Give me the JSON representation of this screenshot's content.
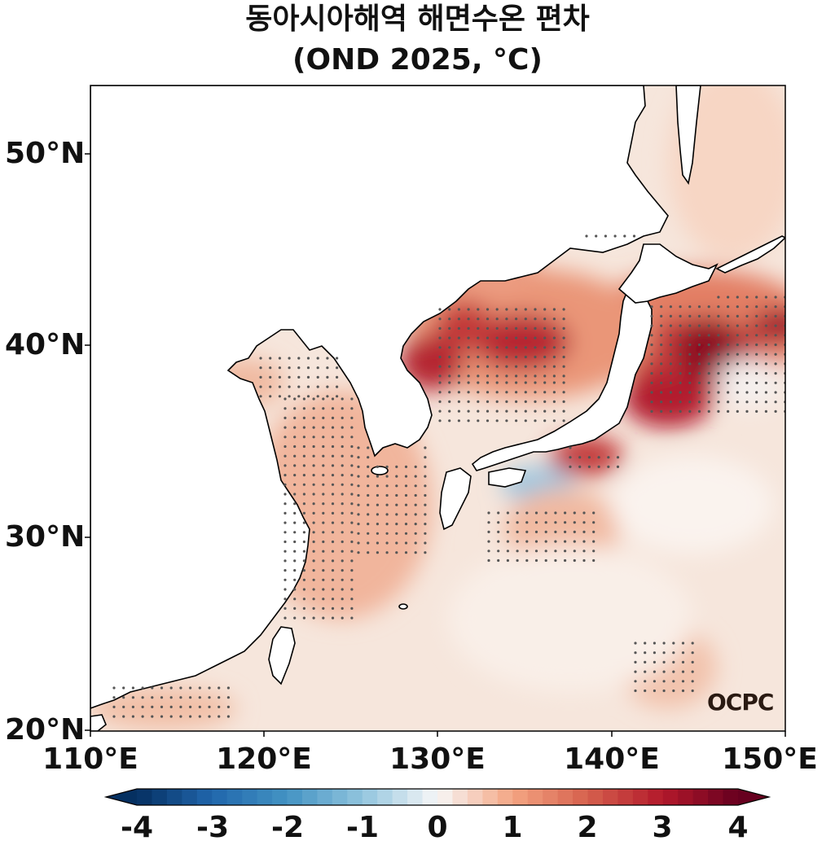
{
  "title": {
    "line1": "동아시아해역 해면수온 편차",
    "line2": "(OND 2025, °C)"
  },
  "axes": {
    "lat_ticks": [
      "50°N",
      "40°N",
      "30°N",
      "20°N"
    ],
    "lon_ticks": [
      "110°E",
      "120°E",
      "130°E",
      "140°E",
      "150°E"
    ],
    "lon_range": [
      110,
      150
    ],
    "lat_range": [
      20,
      53.5
    ]
  },
  "colorbar": {
    "ticks": [
      "-4",
      "-3",
      "-2",
      "-1",
      "0",
      "1",
      "2",
      "3",
      "4"
    ],
    "range": [
      -4,
      4
    ],
    "colormap": "RdBu_r",
    "extend": "both"
  },
  "watermark": "OCPC",
  "colors": {
    "land": "#ffffff",
    "coastline": "#000000",
    "neutral": "#f7f2ee",
    "positive_light": "#f7d3c0",
    "positive_mid": "#e98a6d",
    "positive_strong": "#b2182b",
    "positive_extreme": "#850a22",
    "negative_light": "#c5dcec",
    "negative_mid": "#4393c3"
  }
}
